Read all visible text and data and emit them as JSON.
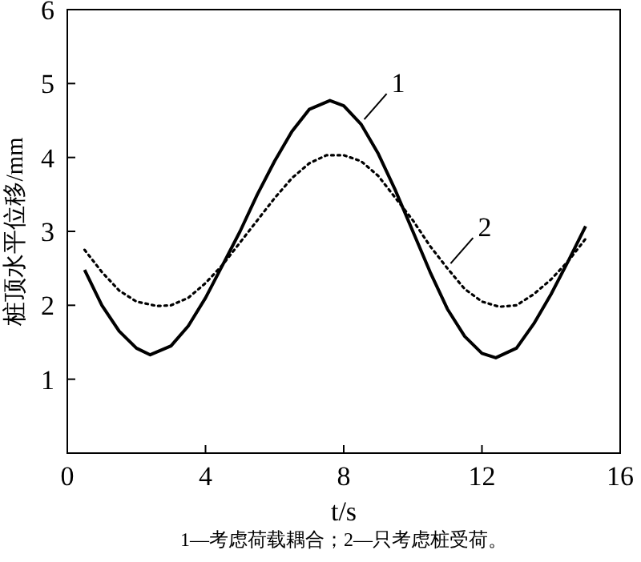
{
  "chart_data": {
    "type": "line",
    "xlabel": "t/s",
    "ylabel": "桩顶水平位移/mm",
    "xlim": [
      0,
      16
    ],
    "xticks": [
      0,
      4,
      8,
      12,
      16
    ],
    "ylim": [
      0,
      6
    ],
    "yticks": [
      {
        "value": 0,
        "label": null
      },
      1,
      2,
      3,
      4,
      5,
      6
    ],
    "grid": false,
    "marker": "none",
    "annotations": [
      "1—考虑荷载耦合；2—只考虑桩受荷。"
    ],
    "series": [
      {
        "name": "1",
        "color": "#000000",
        "line_style": "solid",
        "x": [
          0.5,
          1,
          1.5,
          2,
          2.4,
          3,
          3.5,
          4,
          4.5,
          5,
          5.5,
          6,
          6.5,
          7,
          7.6,
          8,
          8.5,
          9,
          9.5,
          10,
          10.5,
          11,
          11.5,
          12,
          12.4,
          13,
          13.5,
          14,
          14.5,
          15
        ],
        "values": [
          2.48,
          2.0,
          1.65,
          1.42,
          1.33,
          1.45,
          1.72,
          2.1,
          2.55,
          3.0,
          3.5,
          3.95,
          4.35,
          4.65,
          4.77,
          4.7,
          4.45,
          4.05,
          3.55,
          3.0,
          2.45,
          1.95,
          1.58,
          1.35,
          1.29,
          1.42,
          1.75,
          2.15,
          2.6,
          3.07
        ]
      },
      {
        "name": "2",
        "color": "#000000",
        "line_style": "dotted",
        "x": [
          0.5,
          1,
          1.5,
          2,
          2.6,
          3,
          3.5,
          4,
          4.5,
          5,
          5.5,
          6,
          6.5,
          7,
          7.5,
          8,
          8.5,
          9,
          9.5,
          10,
          10.5,
          11,
          11.5,
          12,
          12.5,
          13,
          13.5,
          14,
          14.5,
          15
        ],
        "values": [
          2.75,
          2.45,
          2.2,
          2.05,
          1.99,
          2.0,
          2.1,
          2.3,
          2.55,
          2.85,
          3.15,
          3.45,
          3.72,
          3.92,
          4.03,
          4.03,
          3.95,
          3.75,
          3.45,
          3.15,
          2.8,
          2.5,
          2.22,
          2.05,
          1.98,
          2.0,
          2.15,
          2.35,
          2.6,
          2.9
        ]
      }
    ]
  }
}
